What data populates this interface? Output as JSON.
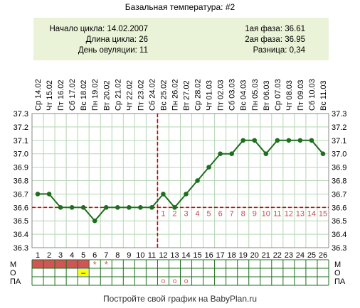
{
  "title": "Базальная температура: #2",
  "info": {
    "cycle_start": "Начало цикла: 14.02.2007",
    "cycle_length": "Длина цикла: 26",
    "ovulation_day": "День овуляции: 11",
    "phase1": "1ая фаза: 36.61",
    "phase2": "2ая фаза: 36.95",
    "difference": "Разница: 0,34"
  },
  "footer": "Постройте свой график на BabyPlan.ru",
  "colors": {
    "line": "#1d6f1d",
    "coverline": "#c80000",
    "grid": "#b5d5b5",
    "post_ovulation_numbers": "#c0504d",
    "menstruation": "#d05555",
    "info_bg": "#eaf3d8",
    "highlight": "#ffff00"
  },
  "chart_data": {
    "type": "line",
    "days": [
      1,
      2,
      3,
      4,
      5,
      6,
      7,
      8,
      9,
      10,
      11,
      12,
      13,
      14,
      15,
      16,
      17,
      18,
      19,
      20,
      21,
      22,
      23,
      24,
      25,
      26
    ],
    "dates": [
      "Ср 14.02",
      "Чт 15.02",
      "Пт 16.02",
      "Сб 17.02",
      "Вс 18.02",
      "Пн 19.02",
      "Вт 20.02",
      "Ср 21.02",
      "Чт 22.02",
      "Пт 23.02",
      "Сб 24.02",
      "Вс 25.02",
      "Пн 26.02",
      "Вт 27.02",
      "Ср 28.02",
      "Чт 01.03",
      "Пт 02.03",
      "Сб 03.03",
      "Вс 04.03",
      "Пн 05.03",
      "Вт 06.03",
      "Ср 07.03",
      "Чт 08.03",
      "Пт 09.03",
      "Сб 10.03",
      "Вс 11.03"
    ],
    "values": [
      36.7,
      36.7,
      36.6,
      36.6,
      36.6,
      36.5,
      36.6,
      36.6,
      36.6,
      36.6,
      36.6,
      36.7,
      36.6,
      36.7,
      36.8,
      36.9,
      37.0,
      37.0,
      37.1,
      37.1,
      37.0,
      37.1,
      37.1,
      37.1,
      37.1,
      37.0
    ],
    "y_ticks": [
      "37.3",
      "37.2",
      "37.1",
      "37.0",
      "36.9",
      "36.8",
      "36.7",
      "36.6",
      "36.5",
      "36.4",
      "36.3"
    ],
    "ylim": [
      36.3,
      37.3
    ],
    "coverline": 36.6,
    "ovulation_day": 11,
    "post_ovulation_labels": [
      "1",
      "2",
      "3",
      "4",
      "5",
      "6",
      "7",
      "8",
      "9",
      "10",
      "11",
      "12",
      "13",
      "14",
      "15"
    ],
    "grid": true
  },
  "rows": {
    "labels": [
      "М",
      "О",
      "ПА"
    ],
    "menstruation_days": [
      1,
      2,
      3,
      4,
      5
    ],
    "menstruation_stars": [
      "*",
      "*"
    ],
    "menstruation_star_days": [
      6,
      7
    ],
    "discharge_marks": [
      {
        "day": 5,
        "text": "–"
      }
    ],
    "intercourse_marks": [
      "o",
      "o",
      "o"
    ],
    "intercourse_days": [
      12,
      13,
      14
    ]
  }
}
